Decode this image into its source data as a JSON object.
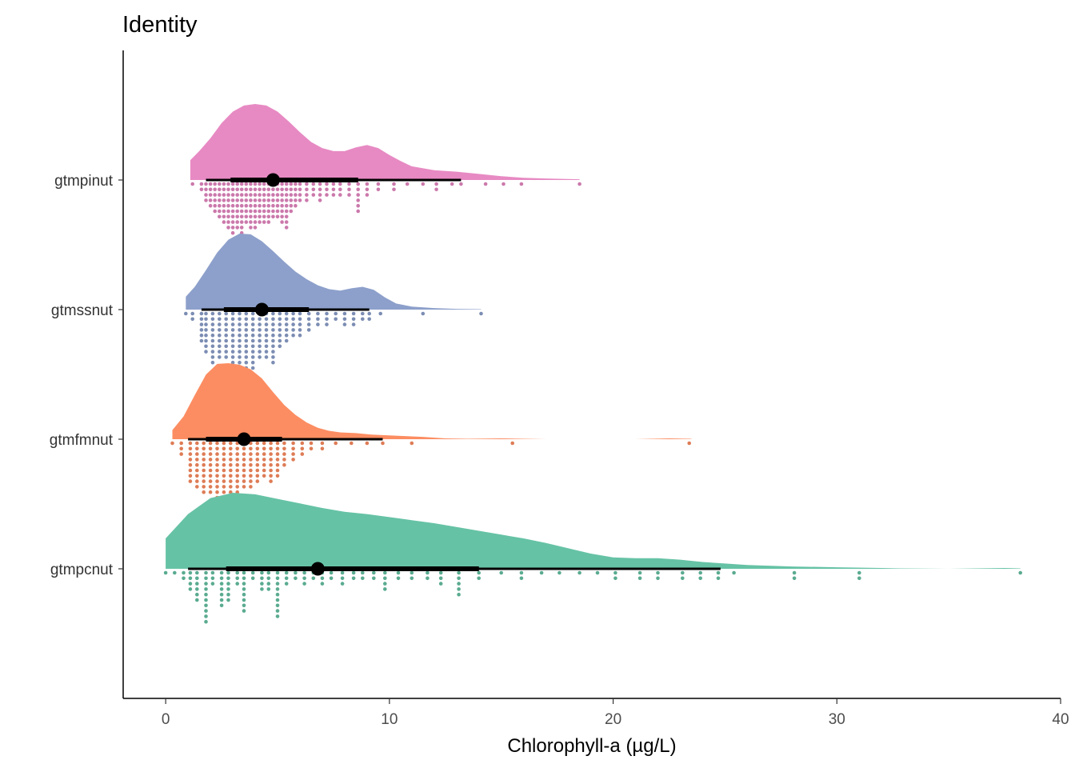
{
  "chart_data": {
    "type": "raincloud",
    "title": "Identity",
    "xlabel": "Chlorophyll-a (µg/L)",
    "ylabel": "",
    "xlim": [
      -1.9,
      40
    ],
    "xticks": [
      0,
      10,
      20,
      30,
      40
    ],
    "grid": false,
    "legend": "none",
    "categories": [
      "gtmpinut",
      "gtmssnut",
      "gtmfmnut",
      "gtmpcnut"
    ],
    "series": [
      {
        "category": "gtmpinut",
        "color": "#e78ac3",
        "median": 4.8,
        "q1": 2.9,
        "q3": 8.6,
        "whisker_low": 1.8,
        "whisker_high": 13.2,
        "min": 1.1,
        "max": 18.5,
        "density": {
          "x": [
            1.1,
            1.5,
            2.0,
            2.5,
            3.0,
            3.5,
            4.0,
            4.5,
            5.0,
            5.5,
            6.0,
            6.5,
            7.0,
            7.5,
            8.0,
            8.5,
            9.0,
            9.5,
            10.0,
            10.5,
            11.0,
            12.0,
            13.0,
            14.0,
            15.0,
            16.0,
            17.0,
            18.5
          ],
          "y": [
            0.26,
            0.38,
            0.55,
            0.75,
            0.9,
            0.98,
            1.0,
            0.98,
            0.9,
            0.77,
            0.63,
            0.5,
            0.42,
            0.38,
            0.38,
            0.43,
            0.46,
            0.42,
            0.33,
            0.25,
            0.18,
            0.13,
            0.11,
            0.08,
            0.05,
            0.03,
            0.02,
            0.01
          ]
        },
        "dot_x": [
          1.2,
          1.6,
          1.8,
          2.0,
          2.2,
          2.4,
          2.6,
          2.8,
          3.0,
          3.2,
          3.4,
          3.6,
          3.8,
          4.0,
          4.2,
          4.4,
          4.6,
          4.8,
          5.0,
          5.2,
          5.4,
          5.6,
          5.8,
          6.0,
          6.3,
          6.6,
          6.9,
          7.2,
          7.5,
          7.8,
          8.2,
          8.6,
          9.0,
          9.5,
          10.2,
          10.8,
          11.5,
          12.1,
          12.8,
          13.2,
          14.3,
          15.1,
          15.9,
          18.5
        ],
        "dot_n": [
          1,
          2,
          4,
          5,
          6,
          7,
          8,
          9,
          10,
          9,
          10,
          8,
          9,
          9,
          8,
          8,
          8,
          7,
          7,
          8,
          9,
          6,
          5,
          4,
          4,
          3,
          4,
          3,
          3,
          3,
          3,
          6,
          3,
          2,
          2,
          1,
          1,
          2,
          1,
          1,
          1,
          1,
          1,
          1
        ]
      },
      {
        "category": "gtmssnut",
        "color": "#8da0cb",
        "median": 4.3,
        "q1": 2.6,
        "q3": 6.4,
        "whisker_low": 1.6,
        "whisker_high": 9.1,
        "min": 0.9,
        "max": 14.1,
        "density": {
          "x": [
            0.9,
            1.3,
            1.8,
            2.3,
            2.8,
            3.3,
            3.8,
            4.3,
            4.8,
            5.3,
            5.8,
            6.3,
            6.8,
            7.3,
            7.8,
            8.3,
            8.8,
            9.3,
            9.8,
            10.3,
            11.0,
            12.0,
            13.0,
            14.1
          ],
          "y": [
            0.17,
            0.3,
            0.52,
            0.75,
            0.92,
            1.0,
            0.99,
            0.9,
            0.77,
            0.63,
            0.5,
            0.4,
            0.32,
            0.27,
            0.25,
            0.28,
            0.3,
            0.26,
            0.16,
            0.08,
            0.04,
            0.02,
            0.01,
            0.005
          ]
        },
        "dot_x": [
          0.9,
          1.2,
          1.6,
          1.8,
          2.1,
          2.4,
          2.7,
          3.0,
          3.3,
          3.6,
          3.9,
          4.2,
          4.5,
          4.8,
          5.1,
          5.4,
          5.7,
          6.0,
          6.4,
          6.8,
          7.2,
          7.6,
          8.0,
          8.4,
          8.8,
          9.1,
          9.6,
          11.5,
          14.1
        ],
        "dot_n": [
          1,
          2,
          6,
          8,
          10,
          9,
          9,
          10,
          11,
          12,
          11,
          9,
          9,
          10,
          7,
          6,
          5,
          5,
          4,
          3,
          3,
          2,
          3,
          3,
          2,
          2,
          1,
          1,
          1
        ]
      },
      {
        "category": "gtmfmnut",
        "color": "#fc8d62",
        "median": 3.5,
        "q1": 1.8,
        "q3": 5.2,
        "whisker_low": 1.0,
        "whisker_high": 9.7,
        "min": 0.3,
        "max": 23.5,
        "density": {
          "x": [
            0.3,
            0.8,
            1.3,
            1.8,
            2.3,
            2.8,
            3.3,
            3.8,
            4.3,
            4.8,
            5.3,
            5.8,
            6.3,
            6.8,
            7.3,
            7.8,
            8.5,
            9.2,
            10.0,
            10.8,
            11.5,
            12.5,
            13.5,
            15.0,
            16.0,
            17.0,
            19.0,
            21.0,
            22.5,
            23.5
          ],
          "y": [
            0.12,
            0.3,
            0.58,
            0.85,
            0.99,
            1.0,
            0.98,
            0.92,
            0.8,
            0.62,
            0.45,
            0.32,
            0.22,
            0.15,
            0.11,
            0.09,
            0.08,
            0.06,
            0.05,
            0.04,
            0.03,
            0.01,
            0.005,
            0.01,
            0.005,
            0.0,
            0.0,
            0.0,
            0.01,
            0.005
          ]
        },
        "dot_x": [
          0.3,
          0.7,
          1.1,
          1.4,
          1.7,
          2.0,
          2.3,
          2.6,
          2.9,
          3.2,
          3.5,
          3.8,
          4.1,
          4.4,
          4.7,
          5.0,
          5.3,
          5.7,
          6.1,
          6.5,
          7.0,
          7.6,
          8.3,
          9.0,
          9.7,
          11.0,
          15.5,
          23.4
        ],
        "dot_n": [
          1,
          3,
          8,
          9,
          10,
          10,
          11,
          11,
          12,
          10,
          9,
          9,
          8,
          7,
          8,
          7,
          5,
          4,
          3,
          2,
          2,
          1,
          1,
          1,
          1,
          1,
          1,
          1
        ]
      },
      {
        "category": "gtmpcnut",
        "color": "#66c2a5",
        "median": 6.8,
        "q1": 2.7,
        "q3": 14.0,
        "whisker_low": 1.0,
        "whisker_high": 24.8,
        "min": 0.0,
        "max": 38.2,
        "density": {
          "x": [
            0.0,
            1.0,
            2.0,
            3.0,
            4.0,
            5.0,
            6.0,
            7.0,
            8.0,
            9.0,
            10.0,
            11.0,
            12.0,
            13.0,
            14.0,
            15.0,
            16.0,
            17.0,
            18.0,
            19.0,
            20.0,
            21.0,
            22.0,
            23.0,
            24.0,
            25.0,
            26.0,
            28.0,
            30.0,
            32.0,
            32.8,
            35.0,
            37.5,
            38.2
          ],
          "y": [
            0.4,
            0.72,
            0.93,
            1.0,
            0.98,
            0.92,
            0.86,
            0.8,
            0.75,
            0.72,
            0.68,
            0.64,
            0.6,
            0.55,
            0.5,
            0.45,
            0.4,
            0.34,
            0.27,
            0.2,
            0.15,
            0.14,
            0.14,
            0.12,
            0.09,
            0.07,
            0.05,
            0.03,
            0.02,
            0.01,
            0.005,
            0.0,
            0.01,
            0.005
          ]
        },
        "dot_x": [
          0.0,
          0.4,
          0.8,
          1.1,
          1.4,
          1.8,
          2.1,
          2.5,
          2.8,
          3.2,
          3.5,
          3.9,
          4.3,
          4.6,
          5.0,
          5.4,
          5.8,
          6.2,
          6.6,
          7.0,
          7.4,
          7.9,
          8.4,
          8.8,
          9.3,
          9.8,
          10.4,
          11.0,
          11.7,
          12.3,
          13.1,
          14.0,
          15.0,
          15.9,
          16.8,
          17.6,
          18.5,
          19.3,
          20.1,
          21.2,
          22.0,
          23.1,
          23.9,
          24.7,
          25.4,
          28.1,
          31.0,
          38.2
        ],
        "dot_n": [
          1,
          1,
          2,
          4,
          6,
          10,
          3,
          7,
          6,
          3,
          8,
          2,
          4,
          4,
          9,
          3,
          2,
          3,
          2,
          3,
          2,
          3,
          2,
          2,
          2,
          4,
          2,
          2,
          2,
          3,
          5,
          2,
          1,
          2,
          1,
          1,
          1,
          1,
          2,
          2,
          2,
          2,
          2,
          2,
          1,
          2,
          2,
          1
        ]
      }
    ]
  }
}
